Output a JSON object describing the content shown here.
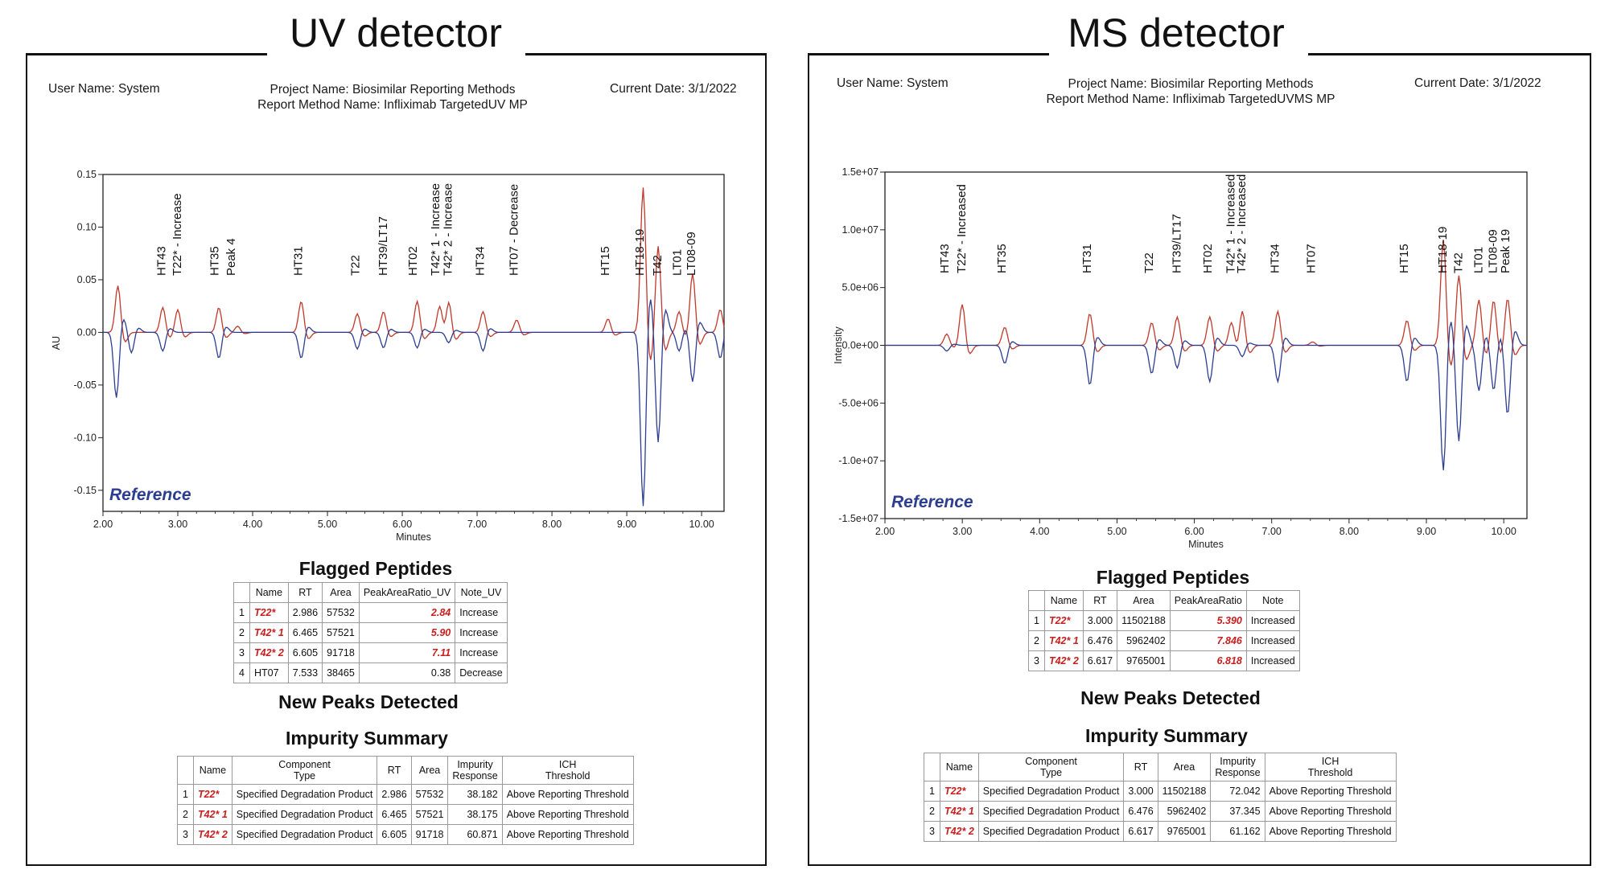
{
  "panels": [
    {
      "heading": "UV detector",
      "header": {
        "user": "User Name: System",
        "project": "Project Name: Biosimilar Reporting Methods",
        "method": "Report Method Name: Infliximab TargetedUV MP",
        "date": "Current Date: 3/1/2022"
      },
      "chart_data": {
        "type": "line",
        "xlabel": "Minutes",
        "ylabel": "AU",
        "xlim": [
          2.0,
          10.3
        ],
        "ylim": [
          -0.17,
          0.15
        ],
        "xticks": [
          "2.00",
          "3.00",
          "4.00",
          "5.00",
          "6.00",
          "7.00",
          "8.00",
          "9.00",
          "10.00"
        ],
        "yticks": [
          "0.15",
          "0.10",
          "0.05",
          "0.00",
          "-0.05",
          "-0.10",
          "-0.15"
        ],
        "reference_label": "Reference",
        "series": [
          {
            "color": "#c0392b",
            "peaks": [
              [
                2.2,
                0.045
              ],
              [
                2.8,
                0.024
              ],
              [
                3.0,
                0.022
              ],
              [
                3.55,
                0.024
              ],
              [
                3.8,
                0.006
              ],
              [
                4.65,
                0.03
              ],
              [
                5.4,
                0.018
              ],
              [
                5.75,
                0.02
              ],
              [
                6.2,
                0.03
              ],
              [
                6.5,
                0.025
              ],
              [
                6.62,
                0.033
              ],
              [
                7.08,
                0.02
              ],
              [
                7.53,
                0.012
              ],
              [
                8.75,
                0.013
              ],
              [
                9.22,
                0.14
              ],
              [
                9.42,
                0.084
              ],
              [
                9.7,
                0.02
              ],
              [
                9.88,
                0.057
              ],
              [
                10.25,
                0.022
              ]
            ]
          },
          {
            "color": "#2c3e91",
            "peaks": [
              [
                2.18,
                -0.063
              ],
              [
                2.38,
                -0.02
              ],
              [
                2.8,
                -0.018
              ],
              [
                3.55,
                -0.025
              ],
              [
                4.65,
                -0.025
              ],
              [
                5.4,
                -0.016
              ],
              [
                5.75,
                -0.015
              ],
              [
                6.2,
                -0.015
              ],
              [
                6.62,
                -0.01
              ],
              [
                7.08,
                -0.018
              ],
              [
                9.22,
                -0.168
              ],
              [
                9.42,
                -0.107
              ],
              [
                9.7,
                -0.018
              ],
              [
                9.88,
                -0.048
              ],
              [
                10.25,
                -0.025
              ]
            ]
          }
        ],
        "peak_labels": [
          {
            "x": 2.79,
            "text": "HT43"
          },
          {
            "x": 3.0,
            "text": "T22* - Increase"
          },
          {
            "x": 3.5,
            "text": "HT35"
          },
          {
            "x": 3.72,
            "text": "Peak 4"
          },
          {
            "x": 4.62,
            "text": "HT31"
          },
          {
            "x": 5.38,
            "text": "T22"
          },
          {
            "x": 5.75,
            "text": "HT39/LT17"
          },
          {
            "x": 6.15,
            "text": "HT02"
          },
          {
            "x": 6.45,
            "text": "T42* 1 - Increase"
          },
          {
            "x": 6.62,
            "text": "T42* 2 - Increase"
          },
          {
            "x": 7.05,
            "text": "HT34"
          },
          {
            "x": 7.5,
            "text": "HT07 - Decrease"
          },
          {
            "x": 8.72,
            "text": "HT15"
          },
          {
            "x": 9.18,
            "text": "HT18-19"
          },
          {
            "x": 9.42,
            "text": "T42"
          },
          {
            "x": 9.68,
            "text": "LT01"
          },
          {
            "x": 9.87,
            "text": "LT08-09"
          }
        ]
      },
      "flagged": {
        "title": "Flagged Peptides",
        "headers": [
          "",
          "Name",
          "RT",
          "Area",
          "PeakAreaRatio_UV",
          "Note_UV"
        ],
        "rows": [
          [
            "1",
            "T22*",
            "2.986",
            "57532",
            "2.84",
            "Increase"
          ],
          [
            "2",
            "T42* 1",
            "6.465",
            "57521",
            "5.90",
            "Increase"
          ],
          [
            "3",
            "T42* 2",
            "6.605",
            "91718",
            "7.11",
            "Increase"
          ],
          [
            "4",
            "HT07",
            "7.533",
            "38465",
            "0.38",
            "Decrease"
          ]
        ]
      },
      "new_peaks_title": "New Peaks Detected",
      "impurity": {
        "title": "Impurity Summary",
        "headers": [
          "",
          "Name",
          "Component\nType",
          "RT",
          "Area",
          "Impurity\nResponse",
          "ICH\nThreshold"
        ],
        "rows": [
          [
            "1",
            "T22*",
            "Specified Degradation Product",
            "2.986",
            "57532",
            "38.182",
            "Above Reporting Threshold"
          ],
          [
            "2",
            "T42* 1",
            "Specified Degradation Product",
            "6.465",
            "57521",
            "38.175",
            "Above Reporting Threshold"
          ],
          [
            "3",
            "T42* 2",
            "Specified Degradation Product",
            "6.605",
            "91718",
            "60.871",
            "Above Reporting Threshold"
          ]
        ]
      }
    },
    {
      "heading": "MS detector",
      "header": {
        "user": "User Name: System",
        "project": "Project Name: Biosimilar Reporting Methods",
        "method": "Report Method Name: Infliximab TargetedUVMS MP",
        "date": "Current Date: 3/1/2022"
      },
      "chart_data": {
        "type": "line",
        "xlabel": "Minutes",
        "ylabel": "Intensity",
        "xlim": [
          2.0,
          10.3
        ],
        "ylim": [
          -15000000,
          15000000
        ],
        "xticks": [
          "2.00",
          "3.00",
          "4.00",
          "5.00",
          "6.00",
          "7.00",
          "8.00",
          "9.00",
          "10.00"
        ],
        "yticks": [
          "1.5e+07",
          "1.0e+07",
          "5.0e+06",
          "0.0e+00",
          "-5.0e+06",
          "-1.0e+07",
          "-1.5e+07"
        ],
        "reference_label": "Reference",
        "series": [
          {
            "color": "#c0392b",
            "peaks": [
              [
                2.8,
                1000000
              ],
              [
                3.0,
                3600000
              ],
              [
                3.55,
                1600000
              ],
              [
                4.65,
                2800000
              ],
              [
                5.45,
                2000000
              ],
              [
                5.78,
                2500000
              ],
              [
                6.2,
                2500000
              ],
              [
                6.48,
                2000000
              ],
              [
                6.62,
                3200000
              ],
              [
                7.08,
                3000000
              ],
              [
                7.53,
                300000
              ],
              [
                8.75,
                2200000
              ],
              [
                9.22,
                9300000
              ],
              [
                9.42,
                6200000
              ],
              [
                9.68,
                4000000
              ],
              [
                9.87,
                4000000
              ],
              [
                10.05,
                4200000
              ]
            ]
          },
          {
            "color": "#2c3e91",
            "peaks": [
              [
                2.8,
                -500000
              ],
              [
                3.55,
                -1600000
              ],
              [
                4.65,
                -3500000
              ],
              [
                5.45,
                -2500000
              ],
              [
                5.78,
                -2000000
              ],
              [
                6.2,
                -3200000
              ],
              [
                6.62,
                -1000000
              ],
              [
                7.08,
                -3200000
              ],
              [
                8.75,
                -3200000
              ],
              [
                9.22,
                -11000000
              ],
              [
                9.42,
                -8500000
              ],
              [
                9.68,
                -4000000
              ],
              [
                9.87,
                -4000000
              ],
              [
                10.05,
                -6200000
              ]
            ]
          }
        ],
        "peak_labels": [
          {
            "x": 2.78,
            "text": "HT43"
          },
          {
            "x": 3.0,
            "text": "T22* - Increased"
          },
          {
            "x": 3.52,
            "text": "HT35"
          },
          {
            "x": 4.62,
            "text": "HT31"
          },
          {
            "x": 5.42,
            "text": "T22"
          },
          {
            "x": 5.78,
            "text": "HT39/LT17"
          },
          {
            "x": 6.18,
            "text": "HT02"
          },
          {
            "x": 6.48,
            "text": "T42* 1 - Increased"
          },
          {
            "x": 6.62,
            "text": "T42* 2 - Increased"
          },
          {
            "x": 7.05,
            "text": "HT34"
          },
          {
            "x": 7.52,
            "text": "HT07"
          },
          {
            "x": 8.72,
            "text": "HT15"
          },
          {
            "x": 9.22,
            "text": "HT18-19"
          },
          {
            "x": 9.42,
            "text": "T42"
          },
          {
            "x": 9.68,
            "text": "LT01"
          },
          {
            "x": 9.87,
            "text": "LT08-09"
          },
          {
            "x": 10.03,
            "text": "Peak 19"
          }
        ]
      },
      "flagged": {
        "title": "Flagged Peptides",
        "headers": [
          "",
          "Name",
          "RT",
          "Area",
          "PeakAreaRatio",
          "Note"
        ],
        "rows": [
          [
            "1",
            "T22*",
            "3.000",
            "11502188",
            "5.390",
            "Increased"
          ],
          [
            "2",
            "T42* 1",
            "6.476",
            "5962402",
            "7.846",
            "Increased"
          ],
          [
            "3",
            "T42* 2",
            "6.617",
            "9765001",
            "6.818",
            "Increased"
          ]
        ]
      },
      "new_peaks_title": "New Peaks Detected",
      "impurity": {
        "title": "Impurity Summary",
        "headers": [
          "",
          "Name",
          "Component\nType",
          "RT",
          "Area",
          "Impurity\nResponse",
          "ICH\nThreshold"
        ],
        "rows": [
          [
            "1",
            "T22*",
            "Specified Degradation Product",
            "3.000",
            "11502188",
            "72.042",
            "Above Reporting Threshold"
          ],
          [
            "2",
            "T42* 1",
            "Specified Degradation Product",
            "6.476",
            "5962402",
            "37.345",
            "Above Reporting Threshold"
          ],
          [
            "3",
            "T42* 2",
            "Specified Degradation Product",
            "6.617",
            "9765001",
            "61.162",
            "Above Reporting Threshold"
          ]
        ]
      }
    }
  ]
}
